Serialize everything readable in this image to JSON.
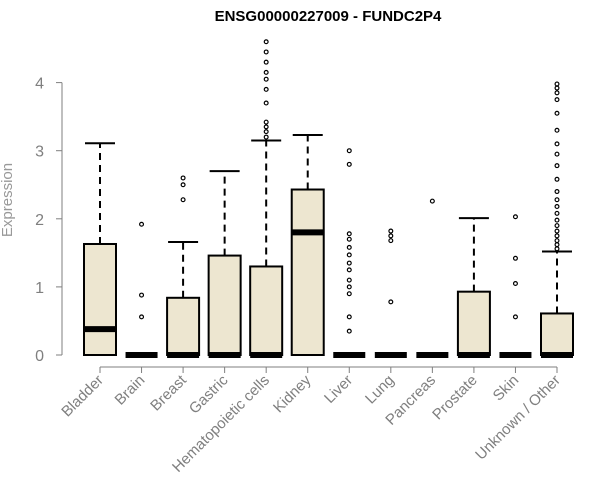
{
  "chart_data": {
    "type": "boxplot",
    "title": "ENSG00000227009 - FUNDC2P4",
    "ylabel": "Expression",
    "ylim": [
      0,
      4.6
    ],
    "yticks": [
      0,
      1,
      2,
      3,
      4
    ],
    "grid": false,
    "box_color": "#ede6d0",
    "categories": [
      "Bladder",
      "Brain",
      "Breast",
      "Gastric",
      "Hematopoietic cells",
      "Kidney",
      "Liver",
      "Lung",
      "Pancreas",
      "Prostate",
      "Skin",
      "Unknown / Other"
    ],
    "boxes": [
      {
        "q1": 0,
        "median": 0.38,
        "q3": 1.63,
        "whisker_low": 0,
        "whisker_high": 3.11,
        "outliers": []
      },
      {
        "q1": 0,
        "median": 0,
        "q3": 0,
        "whisker_low": 0,
        "whisker_high": 0,
        "outliers": [
          0.56,
          0.88,
          1.92
        ]
      },
      {
        "q1": 0,
        "median": 0,
        "q3": 0.84,
        "whisker_low": 0,
        "whisker_high": 1.66,
        "outliers": [
          2.28,
          2.5,
          2.6
        ]
      },
      {
        "q1": 0,
        "median": 0,
        "q3": 1.46,
        "whisker_low": 0,
        "whisker_high": 2.7,
        "outliers": []
      },
      {
        "q1": 0,
        "median": 0,
        "q3": 1.3,
        "whisker_low": 0,
        "whisker_high": 3.15,
        "outliers": [
          3.2,
          3.28,
          3.35,
          3.42,
          3.7,
          3.9,
          4.05,
          4.15,
          4.3,
          4.45,
          4.6
        ]
      },
      {
        "q1": 0,
        "median": 1.8,
        "q3": 2.43,
        "whisker_low": 0,
        "whisker_high": 3.23,
        "outliers": []
      },
      {
        "q1": 0,
        "median": 0,
        "q3": 0,
        "whisker_low": 0,
        "whisker_high": 0,
        "outliers": [
          0.35,
          0.56,
          0.9,
          1.0,
          1.1,
          1.25,
          1.35,
          1.47,
          1.58,
          1.7,
          1.78,
          2.8,
          3.0
        ]
      },
      {
        "q1": 0,
        "median": 0,
        "q3": 0,
        "whisker_low": 0,
        "whisker_high": 0,
        "outliers": [
          0.78,
          1.68,
          1.75,
          1.82
        ]
      },
      {
        "q1": 0,
        "median": 0,
        "q3": 0,
        "whisker_low": 0,
        "whisker_high": 0,
        "outliers": [
          2.26
        ]
      },
      {
        "q1": 0,
        "median": 0,
        "q3": 0.93,
        "whisker_low": 0,
        "whisker_high": 2.01,
        "outliers": []
      },
      {
        "q1": 0,
        "median": 0,
        "q3": 0,
        "whisker_low": 0,
        "whisker_high": 0,
        "outliers": [
          0.56,
          1.05,
          1.42,
          2.03
        ]
      },
      {
        "q1": 0,
        "median": 0,
        "q3": 0.61,
        "whisker_low": 0,
        "whisker_high": 1.52,
        "outliers": [
          1.56,
          1.62,
          1.68,
          1.75,
          1.82,
          1.9,
          1.98,
          2.08,
          2.18,
          2.28,
          2.4,
          2.58,
          2.78,
          2.95,
          3.1,
          3.3,
          3.55,
          3.75,
          3.85,
          3.92,
          3.98
        ]
      }
    ]
  }
}
